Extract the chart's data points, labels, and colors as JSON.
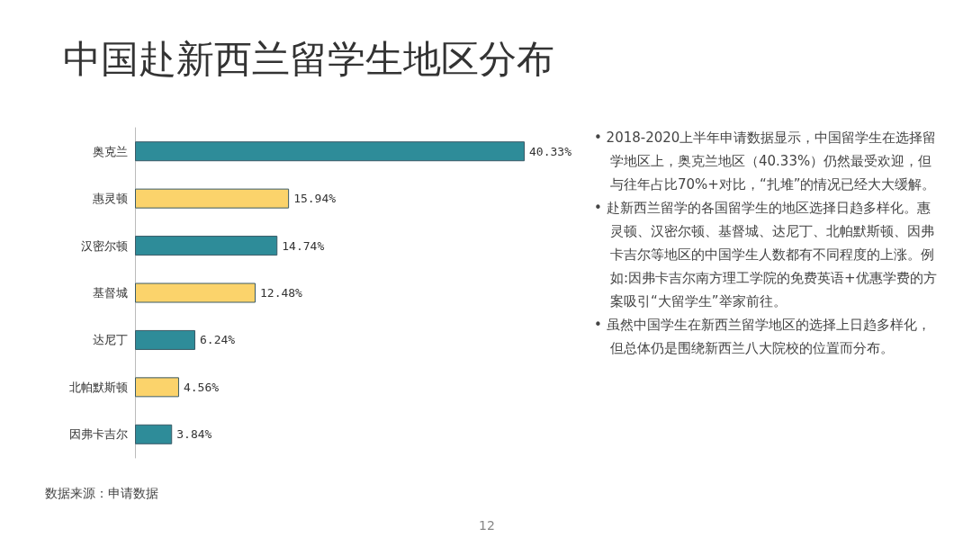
{
  "chart_data": {
    "type": "bar",
    "orientation": "horizontal",
    "title": "中国赴新西兰留学生地区分布",
    "categories": [
      "奥克兰",
      "惠灵顿",
      "汉密尔顿",
      "基督城",
      "达尼丁",
      "北帕默斯顿",
      "因弗卡吉尔"
    ],
    "values": [
      40.33,
      15.94,
      14.74,
      12.48,
      6.24,
      4.56,
      3.84
    ],
    "value_labels": [
      "40.33%",
      "15.94%",
      "14.74%",
      "12.48%",
      "6.24%",
      "4.56%",
      "3.84%"
    ],
    "colors": [
      "#2e8c99",
      "#fbd36b",
      "#2e8c99",
      "#fbd36b",
      "#2e8c99",
      "#fbd36b",
      "#2e8c99"
    ],
    "grid": false,
    "annotations": [
      "• 2018-2020上半年申请数据显示，中国留学生在选择留学地区上，奥克兰地区（40.33%）仍然最受欢迎，但与往年占比70%+对比，“扎堆”的情况已经大大缓解。",
      "• 赴新西兰留学的各国留学生的地区选择日趋多样化。惠灵顿、汉密尔顿、基督城、达尼丁、北帕默斯顿、因弗卡吉尔等地区的中国学生人数都有不同程度的上涨。例如:因弗卡吉尔南方理工学院的免费英语+优惠学费的方案吸引“大留学生”举家前往。",
      "• 虽然中国学生在新西兰留学地区的选择上日趋多样化，但总体仍是围绕新西兰八大院校的位置而分布。",
      "数据来源：申请数据",
      "12"
    ]
  }
}
